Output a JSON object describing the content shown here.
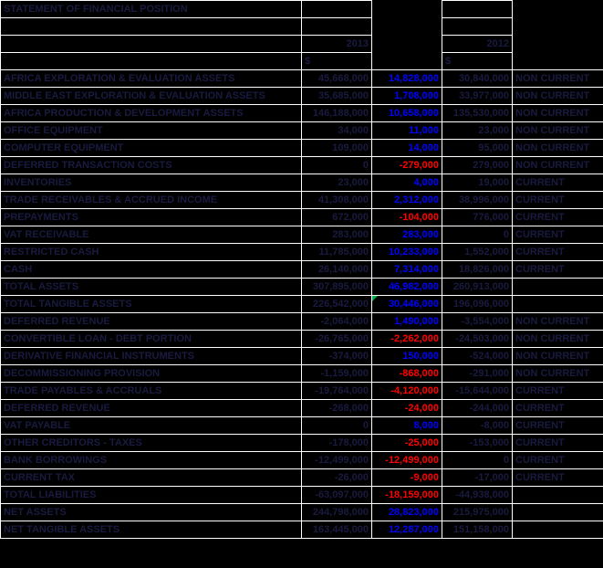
{
  "title": "STATEMENT OF FINANCIAL POSITION",
  "header": {
    "year_left": "2013",
    "year_right": "2012",
    "currency_left": "$",
    "currency_right": "$"
  },
  "colors": {
    "background": "#000000",
    "gridline": "#ffffff",
    "dark_text": "#1a1a40",
    "positive_change": "#0000ff",
    "negative_change": "#ff0000",
    "flag_green": "#00b050"
  },
  "columns": [
    "label",
    "2013",
    "change",
    "2012",
    "classification"
  ],
  "rows": [
    {
      "label": "AFRICA EXPLORATION & EVALUATION ASSETS",
      "y2013": "45,668,000",
      "change": "14,828,000",
      "change_color": "blue",
      "y2012": "30,840,000",
      "cls": "NON CURRENT",
      "flag": false
    },
    {
      "label": "MIDDLE EAST EXPLORATION & EVALUATION ASSETS",
      "y2013": "35,685,000",
      "change": "1,708,000",
      "change_color": "blue",
      "y2012": "33,977,000",
      "cls": "NON CURRENT",
      "flag": false
    },
    {
      "label": "AFRICA PRODUCTION & DEVELOPMENT ASSETS",
      "y2013": "146,188,000",
      "change": "10,658,000",
      "change_color": "blue",
      "y2012": "135,530,000",
      "cls": "NON CURRENT",
      "flag": false
    },
    {
      "label": "OFFICE EQUIPMENT",
      "y2013": "34,000",
      "change": "11,000",
      "change_color": "blue",
      "y2012": "23,000",
      "cls": "NON CURRENT",
      "flag": false
    },
    {
      "label": "COMPUTER EQUIPMENT",
      "y2013": "109,000",
      "change": "14,000",
      "change_color": "blue",
      "y2012": "95,000",
      "cls": "NON CURRENT",
      "flag": false
    },
    {
      "label": "DEFERRED TRANSACTION COSTS",
      "y2013": "0",
      "change": "-279,000",
      "change_color": "red",
      "y2012": "279,000",
      "cls": "NON CURRENT",
      "flag": false
    },
    {
      "label": "INVENTORIES",
      "y2013": "23,000",
      "change": "4,000",
      "change_color": "blue",
      "y2012": "19,000",
      "cls": "CURRENT",
      "flag": false
    },
    {
      "label": "TRADE RECEIVABLES & ACCRUED INCOME",
      "y2013": "41,308,000",
      "change": "2,312,000",
      "change_color": "blue",
      "y2012": "38,996,000",
      "cls": "CURRENT",
      "flag": false
    },
    {
      "label": "PREPAYMENTS",
      "y2013": "672,000",
      "change": "-104,000",
      "change_color": "red",
      "y2012": "776,000",
      "cls": "CURRENT",
      "flag": false
    },
    {
      "label": "VAT RECEIVABLE",
      "y2013": "283,000",
      "change": "283,000",
      "change_color": "blue",
      "y2012": "0",
      "cls": "CURRENT",
      "flag": false
    },
    {
      "label": "RESTRICTED CASH",
      "y2013": "11,785,000",
      "change": "10,233,000",
      "change_color": "blue",
      "y2012": "1,552,000",
      "cls": "CURRENT",
      "flag": false
    },
    {
      "label": "CASH",
      "y2013": "26,140,000",
      "change": "7,314,000",
      "change_color": "blue",
      "y2012": "18,826,000",
      "cls": "CURRENT",
      "flag": false
    },
    {
      "label": "TOTAL ASSETS",
      "y2013": "307,895,000",
      "change": "46,982,000",
      "change_color": "blue",
      "y2012": "260,913,000",
      "cls": "",
      "flag": false
    },
    {
      "label": "TOTAL TANGIBLE ASSETS",
      "y2013": "226,542,000",
      "change": "30,446,000",
      "change_color": "blue",
      "y2012": "196,096,000",
      "cls": "",
      "flag": true
    },
    {
      "label": "DEFERRED REVENUE",
      "y2013": "-2,064,000",
      "change": "1,490,000",
      "change_color": "blue",
      "y2012": "-3,554,000",
      "cls": "NON CURRENT",
      "flag": false
    },
    {
      "label": "CONVERTIBLE LOAN - DEBT PORTION",
      "y2013": "-26,765,000",
      "change": "-2,262,000",
      "change_color": "red",
      "y2012": "-24,503,000",
      "cls": "NON CURRENT",
      "flag": false
    },
    {
      "label": "DERIVATIVE FINANCIAL INSTRUMENTS",
      "y2013": "-374,000",
      "change": "150,000",
      "change_color": "blue",
      "y2012": "-524,000",
      "cls": "NON CURRENT",
      "flag": false
    },
    {
      "label": "DECOMMISSIONING PROVISION",
      "y2013": "-1,159,000",
      "change": "-868,000",
      "change_color": "red",
      "y2012": "-291,000",
      "cls": "NON CURRENT",
      "flag": false
    },
    {
      "label": "TRADE PAYABLES & ACCRUALS",
      "y2013": "-19,764,000",
      "change": "-4,120,000",
      "change_color": "red",
      "y2012": "-15,644,000",
      "cls": "CURRENT",
      "flag": false
    },
    {
      "label": "DEFERRED REVENUE",
      "y2013": "-268,000",
      "change": "-24,000",
      "change_color": "red",
      "y2012": "-244,000",
      "cls": "CURRENT",
      "flag": false
    },
    {
      "label": "VAT PAYABLE",
      "y2013": "0",
      "change": "8,000",
      "change_color": "blue",
      "y2012": "-8,000",
      "cls": "CURRENT",
      "flag": false
    },
    {
      "label": "OTHER CREDITORS - TAXES",
      "y2013": "-178,000",
      "change": "-25,000",
      "change_color": "red",
      "y2012": "-153,000",
      "cls": "CURRENT",
      "flag": false
    },
    {
      "label": "BANK BORROWINGS",
      "y2013": "-12,499,000",
      "change": "-12,499,000",
      "change_color": "red",
      "y2012": "0",
      "cls": "CURRENT",
      "flag": false
    },
    {
      "label": "CURRENT TAX",
      "y2013": "-26,000",
      "change": "-9,000",
      "change_color": "red",
      "y2012": "-17,000",
      "cls": "CURRENT",
      "flag": false
    },
    {
      "label": "TOTAL LIABILITIES",
      "y2013": "-63,097,000",
      "change": "-18,159,000",
      "change_color": "red",
      "y2012": "-44,938,000",
      "cls": "",
      "flag": false
    },
    {
      "label": "NET ASSETS",
      "y2013": "244,798,000",
      "change": "28,823,000",
      "change_color": "blue",
      "y2012": "215,975,000",
      "cls": "",
      "flag": false
    },
    {
      "label": "NET TANGIBLE ASSETS",
      "y2013": "163,445,000",
      "change": "12,287,000",
      "change_color": "blue",
      "y2012": "151,158,000",
      "cls": "",
      "flag": false
    }
  ]
}
